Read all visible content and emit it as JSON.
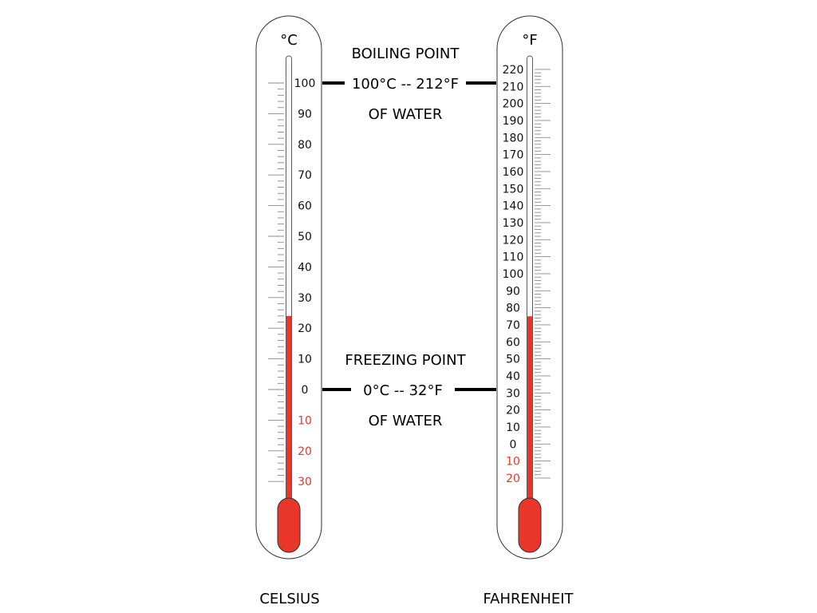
{
  "celsius": {
    "unit": "°C",
    "name": "CELSIUS",
    "scale": [
      "100",
      "90",
      "80",
      "70",
      "60",
      "50",
      "40",
      "30",
      "20",
      "10",
      "0",
      "10",
      "20",
      "30"
    ],
    "reading_c": 24,
    "range_c": [
      -30,
      100
    ]
  },
  "fahrenheit": {
    "unit": "°F",
    "name": "FAHRENHEIT",
    "scale": [
      "220",
      "210",
      "200",
      "190",
      "180",
      "170",
      "160",
      "150",
      "140",
      "130",
      "120",
      "110",
      "100",
      "90",
      "80",
      "70",
      "60",
      "50",
      "40",
      "30",
      "20",
      "10",
      "0",
      "10",
      "20"
    ],
    "reading_f": 75,
    "range_f": [
      -20,
      220
    ]
  },
  "boiling": {
    "title": "BOILING POINT",
    "value": "100°C -- 212°F",
    "sub": "OF WATER"
  },
  "freezing": {
    "title": "FREEZING POINT",
    "value": "0°C -- 32°F",
    "sub": "OF WATER"
  },
  "colors": {
    "mercury": "#e8372a",
    "negative_label": "#e8372a",
    "outline": "#333333",
    "tick": "#888888",
    "line": "#000000"
  }
}
